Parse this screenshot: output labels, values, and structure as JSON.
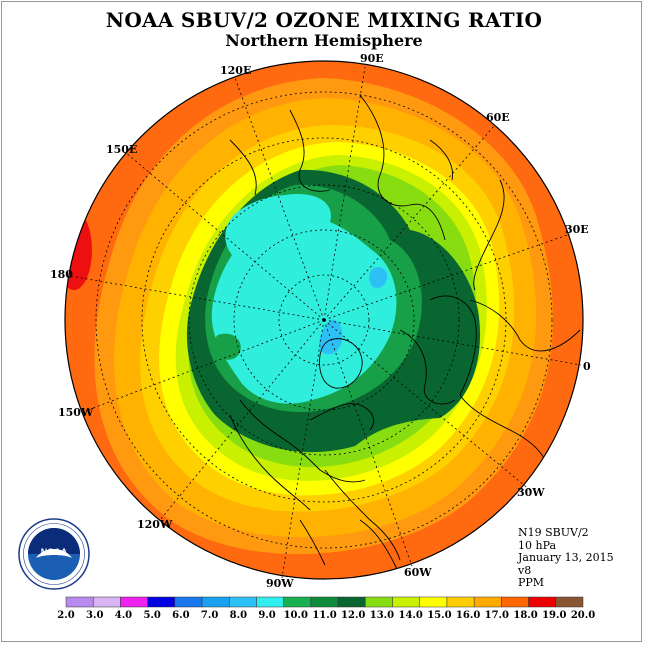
{
  "title": "NOAA SBUV/2 OZONE MIXING RATIO",
  "subtitle": "Northern Hemisphere",
  "longitude_labels": {
    "lon_120e": "120E",
    "lon_90e": "90E",
    "lon_60e": "60E",
    "lon_150e": "150E",
    "lon_30e": "30E",
    "lon_180": "180",
    "lon_0": "0",
    "lon_150w": "150W",
    "lon_30w": "30W",
    "lon_120w": "120W",
    "lon_60w": "60W",
    "lon_90w": "90W"
  },
  "info": {
    "satellite": "N19 SBUV/2",
    "pressure": "10 hPa",
    "date": "January 13, 2015",
    "version": "v8",
    "units": "PPM"
  },
  "logo": {
    "text": "NOAA",
    "ring_text": "NATIONAL OCEANIC AND ATMOSPHERIC ADMINISTRATION · U.S. DEPARTMENT OF COMMERCE"
  },
  "colorbar": {
    "labels": [
      "2.0",
      "3.0",
      "4.0",
      "5.0",
      "6.0",
      "7.0",
      "8.0",
      "9.0",
      "10.0",
      "11.0",
      "12.0",
      "13.0",
      "14.0",
      "15.0",
      "16.0",
      "17.0",
      "18.0",
      "19.0",
      "20.0"
    ],
    "colors": [
      "#b88aee",
      "#d8b4f0",
      "#ee22ee",
      "#0000e0",
      "#1a78ee",
      "#1aa0f0",
      "#2cc0f4",
      "#30eef0",
      "#18b050",
      "#0d8a3a",
      "#0a6630",
      "#88dd10",
      "#c8f000",
      "#ffff00",
      "#ffcc00",
      "#ffaa00",
      "#ff6600",
      "#ee0000",
      "#885533"
    ]
  },
  "contours": [
    {
      "level": "18-19",
      "color": "#ff6a10"
    },
    {
      "level": "17-18",
      "color": "#ff9a10"
    },
    {
      "level": "16-17",
      "color": "#ffb300"
    },
    {
      "level": "15-16",
      "color": "#ffd000"
    },
    {
      "level": "14-15",
      "color": "#ffff00"
    },
    {
      "level": "13-14",
      "color": "#c8f000"
    },
    {
      "level": "12-13",
      "color": "#88dd10"
    },
    {
      "level": "11-12",
      "color": "#0a6630"
    },
    {
      "level": "10-11",
      "color": "#18a048"
    },
    {
      "level": "9-10",
      "color": "#30eedc"
    },
    {
      "level": "8-9",
      "color": "#2cc0f4"
    }
  ]
}
